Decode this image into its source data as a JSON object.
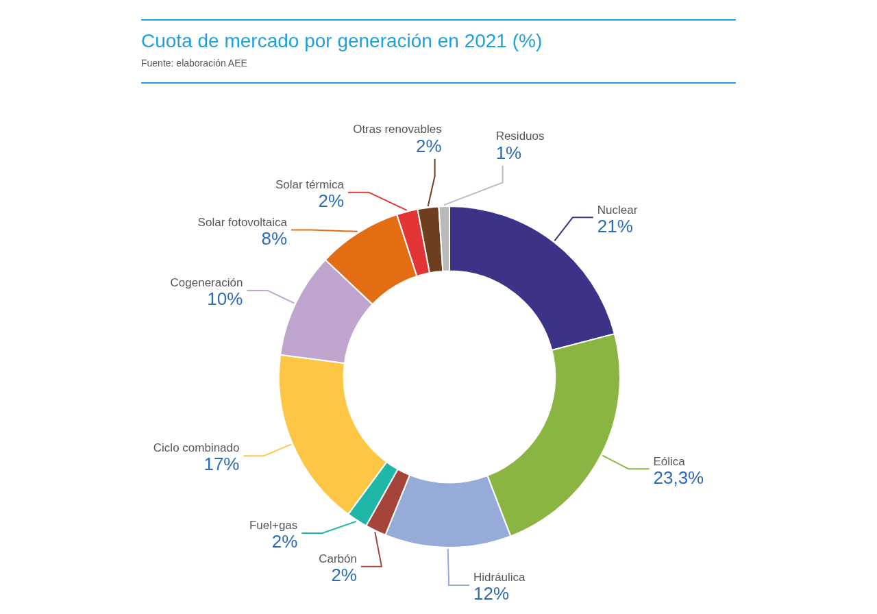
{
  "chart_data": {
    "type": "donut",
    "title": "Cuota de mercado por generación en 2021 (%)",
    "annotations": [
      "Fuente: elaboración AEE"
    ],
    "categories": [
      "Nuclear",
      "Eólica",
      "Hidráulica",
      "Carbón",
      "Fuel+gas",
      "Ciclo combinado",
      "Cogeneración",
      "Solar fotovoltaica",
      "Solar térmica",
      "Otras renovables",
      "Residuos"
    ],
    "values": [
      21,
      23.3,
      12,
      2,
      2,
      17,
      10,
      8,
      2,
      2,
      1
    ],
    "value_labels": [
      "21%",
      "23,3%",
      "12%",
      "2%",
      "2%",
      "17%",
      "10%",
      "8%",
      "2%",
      "2%",
      "1%"
    ],
    "colors": [
      "#3b3387",
      "#8bb543",
      "#97abd9",
      "#a5453a",
      "#1fb8a8",
      "#fdc745",
      "#bfa5cd",
      "#e36d12",
      "#e33535",
      "#6e3f1e",
      "#b9b9b9"
    ],
    "legend": false
  }
}
